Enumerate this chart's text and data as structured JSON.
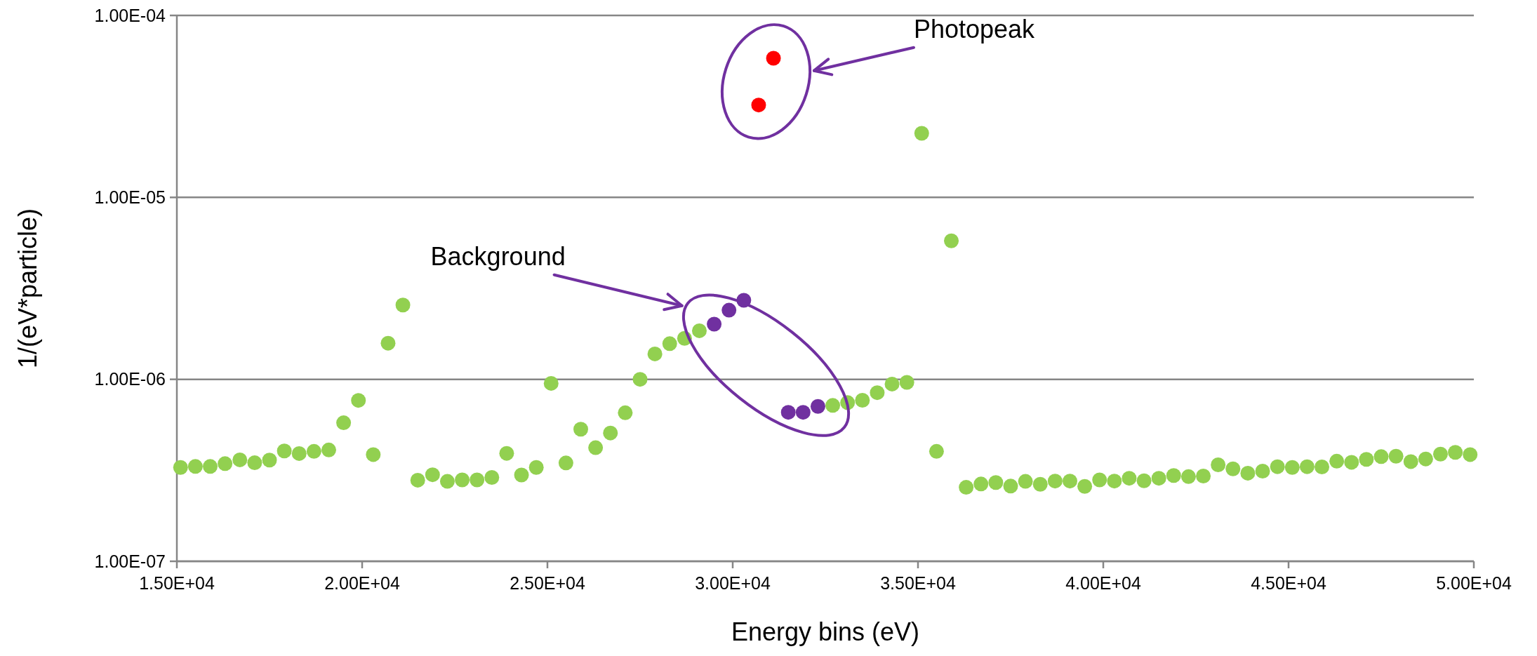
{
  "chart_data": {
    "type": "scatter",
    "xlabel": "Energy bins (eV)",
    "ylabel": "1/(eV*particle)",
    "log": "y",
    "grid": "y",
    "marker": "circle",
    "xlim": [
      15000,
      50000
    ],
    "xticks": [
      {
        "value": 15000,
        "label": "1.50E+04"
      },
      {
        "value": 20000,
        "label": "2.00E+04"
      },
      {
        "value": 25000,
        "label": "2.50E+04"
      },
      {
        "value": 30000,
        "label": "3.00E+04"
      },
      {
        "value": 35000,
        "label": "3.50E+04"
      },
      {
        "value": 40000,
        "label": "4.00E+04"
      },
      {
        "value": 45000,
        "label": "4.50E+04"
      },
      {
        "value": 50000,
        "label": "5.00E+04"
      }
    ],
    "ylim": [
      1e-07,
      0.0001
    ],
    "yticks": [
      {
        "value": 1e-07,
        "label": "1.00E-07"
      },
      {
        "value": 1e-06,
        "label": "1.00E-06"
      },
      {
        "value": 1e-05,
        "label": "1.00E-05"
      },
      {
        "value": 0.0001,
        "label": "1.00E-04"
      }
    ],
    "series": [
      {
        "color": "#92d050",
        "x": [
          15100,
          15500,
          15900,
          16300,
          16700,
          17100,
          17500,
          17900,
          18300,
          18700,
          19100,
          19500,
          19900,
          20300,
          20700,
          21100,
          21500,
          21900,
          22300,
          22700,
          23100,
          23500,
          23900,
          24300,
          24700,
          25100,
          25500,
          25900,
          26300,
          26700,
          27100,
          27500,
          27900,
          28300,
          28700,
          29100,
          32700,
          33100,
          33500,
          33900,
          34300,
          34700,
          35100,
          35500,
          35900,
          36300,
          36700,
          37100,
          37500,
          37900,
          38300,
          38700,
          39100,
          39500,
          39900,
          40300,
          40700,
          41100,
          41500,
          41900,
          42300,
          42700,
          43100,
          43500,
          43900,
          44300,
          44700,
          45100,
          45500,
          45900,
          46300,
          46700,
          47100,
          47500,
          47900,
          48300,
          48700,
          49100,
          49500,
          49900
        ],
        "values": [
          3.28e-07,
          3.32e-07,
          3.32e-07,
          3.44e-07,
          3.61e-07,
          3.48e-07,
          3.6e-07,
          4.04e-07,
          3.91e-07,
          4.02e-07,
          4.09e-07,
          5.77e-07,
          7.66e-07,
          3.86e-07,
          1.58e-06,
          2.56e-06,
          2.79e-07,
          2.99e-07,
          2.75e-07,
          2.8e-07,
          2.8e-07,
          2.89e-07,
          3.92e-07,
          2.98e-07,
          3.28e-07,
          9.5e-07,
          3.47e-07,
          5.32e-07,
          4.21e-07,
          5.07e-07,
          6.55e-07,
          1e-06,
          1.38e-06,
          1.57e-06,
          1.68e-06,
          1.85e-06,
          7.19e-07,
          7.45e-07,
          7.67e-07,
          8.45e-07,
          9.42e-07,
          9.62e-07,
          2.25e-05,
          4.02e-07,
          5.77e-06,
          2.55e-07,
          2.66e-07,
          2.71e-07,
          2.59e-07,
          2.75e-07,
          2.65e-07,
          2.76e-07,
          2.76e-07,
          2.58e-07,
          2.8e-07,
          2.76e-07,
          2.86e-07,
          2.77e-07,
          2.86e-07,
          2.96e-07,
          2.92e-07,
          2.94e-07,
          3.39e-07,
          3.22e-07,
          3.05e-07,
          3.13e-07,
          3.31e-07,
          3.28e-07,
          3.31e-07,
          3.3e-07,
          3.55e-07,
          3.5e-07,
          3.63e-07,
          3.76e-07,
          3.78e-07,
          3.53e-07,
          3.65e-07,
          3.88e-07,
          3.97e-07,
          3.86e-07
        ]
      },
      {
        "color": "#ff0000",
        "x": [
          30700,
          31100
        ],
        "values": [
          3.22e-05,
          5.82e-05
        ]
      },
      {
        "color": "#7030a0",
        "x": [
          29500,
          29900,
          30300,
          31500,
          31900,
          32300
        ],
        "values": [
          2.01e-06,
          2.4e-06,
          2.72e-06,
          6.59e-07,
          6.59e-07,
          7.1e-07
        ]
      }
    ],
    "annotations": [
      "Photopeak",
      "Background"
    ]
  }
}
